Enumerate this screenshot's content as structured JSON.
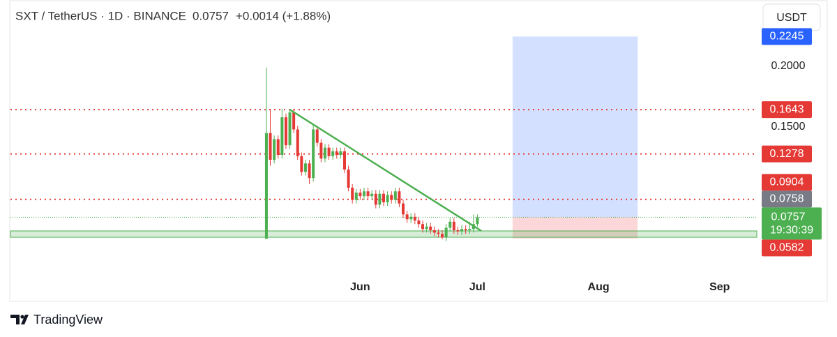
{
  "chart_data": {
    "type": "candlestick",
    "header": {
      "symbol": "SXT / TetherUS · 1D · BINANCE",
      "price": "0.0757",
      "change": "+0.0014 (+1.88%)"
    },
    "currency": "USDT",
    "countdown": "19:30:39",
    "brand": "TradingView",
    "up_color": "#4caf50",
    "down_color": "#e53935",
    "open": [
      0.058,
      0.145,
      0.123,
      0.14,
      0.127,
      0.158,
      0.135,
      0.162,
      0.148,
      0.126,
      0.113,
      0.12,
      0.108,
      0.148,
      0.137,
      0.124,
      0.133,
      0.126,
      0.13,
      0.127,
      0.13,
      0.115,
      0.1,
      0.09,
      0.096,
      0.093,
      0.097,
      0.093,
      0.095,
      0.086,
      0.095,
      0.088,
      0.094,
      0.09,
      0.097,
      0.087,
      0.078,
      0.074,
      0.076,
      0.073,
      0.07,
      0.066,
      0.068,
      0.065,
      0.063,
      0.062,
      0.059,
      0.067,
      0.072,
      0.065,
      0.064,
      0.066,
      0.065,
      0.066,
      0.07
    ],
    "high": [
      0.199,
      0.165,
      0.143,
      0.143,
      0.165,
      0.161,
      0.165,
      0.165,
      0.151,
      0.129,
      0.123,
      0.123,
      0.152,
      0.151,
      0.14,
      0.136,
      0.136,
      0.133,
      0.133,
      0.133,
      0.133,
      0.118,
      0.103,
      0.099,
      0.099,
      0.1,
      0.1,
      0.098,
      0.098,
      0.098,
      0.098,
      0.097,
      0.097,
      0.1,
      0.1,
      0.09,
      0.081,
      0.079,
      0.079,
      0.076,
      0.073,
      0.071,
      0.071,
      0.068,
      0.066,
      0.065,
      0.07,
      0.075,
      0.075,
      0.068,
      0.069,
      0.069,
      0.072,
      0.078,
      0.078
    ],
    "low": [
      0.0578,
      0.118,
      0.12,
      0.124,
      0.124,
      0.132,
      0.132,
      0.145,
      0.123,
      0.11,
      0.11,
      0.103,
      0.105,
      0.134,
      0.121,
      0.121,
      0.123,
      0.123,
      0.124,
      0.124,
      0.112,
      0.097,
      0.087,
      0.087,
      0.09,
      0.09,
      0.09,
      0.09,
      0.083,
      0.083,
      0.085,
      0.085,
      0.087,
      0.087,
      0.084,
      0.075,
      0.071,
      0.071,
      0.07,
      0.067,
      0.063,
      0.063,
      0.062,
      0.06,
      0.059,
      0.0575,
      0.056,
      0.064,
      0.062,
      0.061,
      0.061,
      0.062,
      0.062,
      0.063,
      0.068
    ],
    "close": [
      0.145,
      0.123,
      0.14,
      0.127,
      0.158,
      0.135,
      0.162,
      0.148,
      0.126,
      0.113,
      0.12,
      0.108,
      0.148,
      0.137,
      0.124,
      0.133,
      0.126,
      0.13,
      0.127,
      0.13,
      0.115,
      0.1,
      0.09,
      0.096,
      0.093,
      0.097,
      0.093,
      0.095,
      0.086,
      0.095,
      0.088,
      0.094,
      0.09,
      0.097,
      0.087,
      0.078,
      0.074,
      0.076,
      0.073,
      0.07,
      0.066,
      0.068,
      0.065,
      0.063,
      0.062,
      0.059,
      0.067,
      0.072,
      0.065,
      0.064,
      0.066,
      0.065,
      0.066,
      0.07,
      0.0757
    ],
    "xlim": [
      -65.5,
      125.5
    ],
    "xticks": [
      {
        "value": 24,
        "label": "Jun"
      },
      {
        "value": 54,
        "label": "Jul"
      },
      {
        "value": 85,
        "label": "Aug"
      },
      {
        "value": 116,
        "label": "Sep"
      }
    ],
    "ylim": [
      0.0075,
      0.2546
    ],
    "yticks": [
      {
        "value": 0.2,
        "label": "0.2000"
      },
      {
        "value": 0.15,
        "label": "0.1500"
      }
    ],
    "levels": [
      0.1643,
      0.1278,
      0.0904
    ],
    "level_color": "#e53935",
    "support_zone": [
      0.0592,
      0.0644
    ],
    "trendline": {
      "from": [
        6,
        0.1643
      ],
      "to": [
        55,
        0.0644
      ],
      "color": "#4caf50"
    },
    "position": {
      "entry": 0.0757,
      "target": 0.2245,
      "stop": 0.0582,
      "start": 63,
      "end": 95
    },
    "current_price": 0.0757,
    "price_labels": [
      {
        "value": 0.2245,
        "color": "#2962ff"
      },
      {
        "value": 0.1643,
        "color": "#e53935"
      },
      {
        "value": 0.1278,
        "color": "#e53935"
      },
      {
        "value": 0.0904,
        "color": "#e53935"
      },
      {
        "value": 0.0758,
        "color": "#787b86"
      },
      {
        "value": 0.0757,
        "color": "#4caf50"
      },
      {
        "value": 0.0582,
        "color": "#e53935"
      }
    ]
  }
}
